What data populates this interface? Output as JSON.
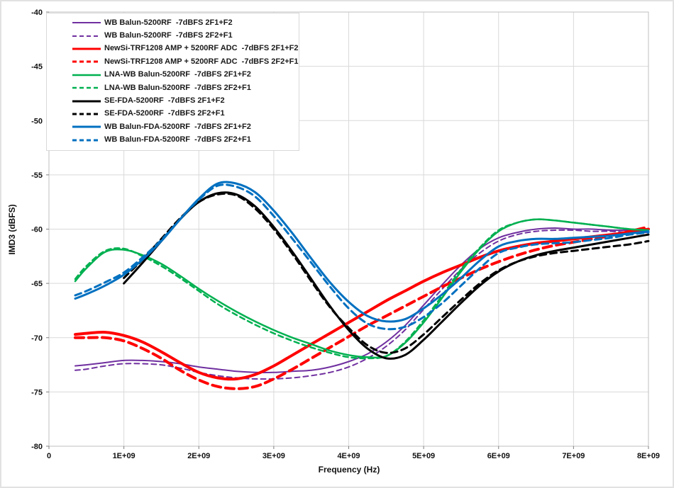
{
  "chart_data": {
    "type": "line",
    "title": "",
    "xlabel": "Frequency (Hz)",
    "ylabel": "IMD3 (dBFS)",
    "xlim_hz": [
      0,
      8000000000.0
    ],
    "ylim": [
      -80,
      -40
    ],
    "x_tick_step_hz": 1000000000.0,
    "y_tick_step": 5,
    "x_tick_labels": [
      "0",
      "1E+09",
      "2E+09",
      "3E+09",
      "4E+09",
      "5E+09",
      "6E+09",
      "7E+09",
      "8E+09"
    ],
    "y_tick_labels": [
      "-40",
      "-45",
      "-50",
      "-55",
      "-60",
      "-65",
      "-70",
      "-75",
      "-80"
    ],
    "grid": true,
    "legend_position": "top-left",
    "colors": {
      "purple": "#7030A0",
      "red": "#FF0000",
      "green": "#00B050",
      "black": "#000000",
      "blue": "#0070C0",
      "gridline": "#d9d9d9",
      "plot_border": "#bfbfbf",
      "tick": "#7f7f7f"
    },
    "series": [
      {
        "name": "WB Balun-5200RF  -7dBFS 2F1+F2",
        "color": "#7030A0",
        "style": "solid",
        "width": 2,
        "x_ghz": [
          0.35,
          0.5,
          0.75,
          1,
          1.25,
          1.5,
          1.75,
          2,
          2.25,
          2.5,
          2.75,
          3,
          3.25,
          3.5,
          3.75,
          4,
          4.25,
          4.5,
          4.75,
          5,
          5.25,
          5.5,
          5.75,
          6,
          6.25,
          6.5,
          6.75,
          7,
          7.25,
          7.5,
          7.75,
          8
        ],
        "y_dbfs": [
          -72.6,
          -72.5,
          -72.3,
          -72.1,
          -72.1,
          -72.2,
          -72.4,
          -72.7,
          -72.9,
          -73.1,
          -73.2,
          -73.2,
          -73.1,
          -73.0,
          -72.7,
          -72.2,
          -71.5,
          -70.4,
          -68.9,
          -67.0,
          -65.1,
          -63.3,
          -61.8,
          -60.8,
          -60.3,
          -60.0,
          -59.9,
          -60.0,
          -60.0,
          -60.1,
          -60.1,
          -60.2
        ]
      },
      {
        "name": "WB Balun-5200RF  -7dBFS 2F2+F1",
        "color": "#7030A0",
        "style": "dashed",
        "width": 2,
        "dash": "7,5",
        "x_ghz": [
          0.35,
          0.5,
          0.75,
          1,
          1.25,
          1.5,
          1.75,
          2,
          2.25,
          2.5,
          2.75,
          3,
          3.25,
          3.5,
          3.75,
          4,
          4.25,
          4.5,
          4.75,
          5,
          5.25,
          5.5,
          5.75,
          6,
          6.25,
          6.5,
          6.75,
          7,
          7.25,
          7.5,
          7.75,
          8
        ],
        "y_dbfs": [
          -73.0,
          -72.9,
          -72.6,
          -72.4,
          -72.4,
          -72.5,
          -72.8,
          -73.2,
          -73.5,
          -73.7,
          -73.8,
          -73.8,
          -73.7,
          -73.5,
          -73.2,
          -72.7,
          -71.9,
          -70.8,
          -69.3,
          -67.4,
          -65.5,
          -63.7,
          -62.2,
          -61.1,
          -60.5,
          -60.2,
          -60.1,
          -60.1,
          -60.2,
          -60.2,
          -60.3,
          -60.3
        ]
      },
      {
        "name": "NewSi-TRF1208 AMP + 5200RF ADC  -7dBFS 2F1+F2",
        "color": "#FF0000",
        "style": "solid",
        "width": 4,
        "x_ghz": [
          0.35,
          0.5,
          0.75,
          1,
          1.25,
          1.5,
          1.75,
          2,
          2.25,
          2.5,
          2.75,
          3,
          3.25,
          3.5,
          3.75,
          4,
          4.25,
          4.5,
          4.75,
          5,
          5.25,
          5.5,
          5.75,
          6,
          6.25,
          6.5,
          6.75,
          7,
          7.25,
          7.5,
          7.75,
          8
        ],
        "y_dbfs": [
          -69.7,
          -69.6,
          -69.5,
          -69.8,
          -70.4,
          -71.3,
          -72.3,
          -73.2,
          -73.7,
          -73.8,
          -73.4,
          -72.6,
          -71.6,
          -70.6,
          -69.6,
          -68.6,
          -67.6,
          -66.6,
          -65.7,
          -64.8,
          -64.0,
          -63.3,
          -62.6,
          -62.0,
          -61.6,
          -61.3,
          -61.1,
          -60.9,
          -60.7,
          -60.5,
          -60.3,
          -60.0
        ]
      },
      {
        "name": "NewSi-TRF1208 AMP + 5200RF ADC  -7dBFS 2F2+F1",
        "color": "#FF0000",
        "style": "dashed",
        "width": 4,
        "dash": "12,7",
        "x_ghz": [
          0.35,
          0.5,
          0.75,
          1,
          1.25,
          1.5,
          1.75,
          2,
          2.25,
          2.5,
          2.75,
          3,
          3.25,
          3.5,
          3.75,
          4,
          4.25,
          4.5,
          4.75,
          5,
          5.25,
          5.5,
          5.75,
          6,
          6.25,
          6.5,
          6.75,
          7,
          7.25,
          7.5,
          7.75,
          8
        ],
        "y_dbfs": [
          -70.0,
          -70.0,
          -70.0,
          -70.3,
          -71.0,
          -71.9,
          -73.0,
          -73.9,
          -74.5,
          -74.7,
          -74.5,
          -73.8,
          -72.9,
          -71.9,
          -70.9,
          -69.9,
          -68.9,
          -68.0,
          -67.1,
          -66.2,
          -65.3,
          -64.5,
          -63.7,
          -63.0,
          -62.4,
          -61.9,
          -61.5,
          -61.2,
          -60.9,
          -60.6,
          -60.2,
          -59.8
        ]
      },
      {
        "name": "LNA-WB Balun-5200RF  -7dBFS 2F1+F2",
        "color": "#00B050",
        "style": "solid",
        "width": 2.5,
        "x_ghz": [
          0.35,
          0.5,
          0.75,
          1,
          1.25,
          1.5,
          1.75,
          2,
          2.25,
          2.5,
          2.75,
          3,
          3.25,
          3.5,
          3.75,
          4,
          4.25,
          4.5,
          4.75,
          5,
          5.25,
          5.5,
          5.75,
          6,
          6.25,
          6.5,
          6.75,
          7,
          7.25,
          7.5,
          7.75,
          8
        ],
        "y_dbfs": [
          -64.8,
          -63.6,
          -62.1,
          -61.9,
          -62.4,
          -63.2,
          -64.3,
          -65.5,
          -66.6,
          -67.6,
          -68.5,
          -69.3,
          -70.0,
          -70.6,
          -71.2,
          -71.6,
          -71.8,
          -71.7,
          -70.5,
          -68.6,
          -66.3,
          -63.9,
          -61.8,
          -60.2,
          -59.4,
          -59.1,
          -59.2,
          -59.4,
          -59.6,
          -59.8,
          -60.0,
          -60.1
        ]
      },
      {
        "name": "LNA-WB Balun-5200RF  -7dBFS 2F2+F1",
        "color": "#00B050",
        "style": "dashed",
        "width": 2.5,
        "dash": "7,5",
        "x_ghz": [
          0.35,
          0.5,
          0.75,
          1,
          1.25,
          1.5,
          1.75,
          2,
          2.25,
          2.5,
          2.75,
          3,
          3.25,
          3.5,
          3.75,
          4,
          4.25,
          4.5,
          4.75,
          5,
          5.25,
          5.5,
          5.75,
          6,
          6.25,
          6.5,
          6.75,
          7,
          7.25,
          7.5,
          7.75,
          8
        ],
        "y_dbfs": [
          -64.6,
          -63.4,
          -62.0,
          -61.8,
          -62.5,
          -63.4,
          -64.5,
          -65.7,
          -66.9,
          -67.9,
          -68.8,
          -69.6,
          -70.3,
          -70.9,
          -71.4,
          -71.8,
          -71.9,
          -71.7,
          -70.4,
          -68.4,
          -66.1,
          -63.7,
          -61.7,
          -60.1,
          -59.4,
          -59.1,
          -59.2,
          -59.4,
          -59.6,
          -59.8,
          -60.0,
          -60.1
        ]
      },
      {
        "name": "SE-FDA-5200RF  -7dBFS 2F1+F2",
        "color": "#000000",
        "style": "solid",
        "width": 3,
        "x_ghz": [
          1,
          1.25,
          1.5,
          1.75,
          2,
          2.25,
          2.5,
          2.75,
          3,
          3.25,
          3.5,
          3.75,
          4,
          4.25,
          4.5,
          4.75,
          5,
          5.25,
          5.5,
          5.75,
          6,
          6.25,
          6.5,
          6.75,
          7,
          7.25,
          7.5,
          7.75,
          8
        ],
        "y_dbfs": [
          -65.0,
          -63.1,
          -61.1,
          -59.1,
          -57.5,
          -56.7,
          -56.8,
          -57.9,
          -59.8,
          -62.1,
          -64.6,
          -67.1,
          -69.3,
          -71.0,
          -71.9,
          -71.6,
          -70.2,
          -68.5,
          -66.8,
          -65.2,
          -63.9,
          -63.0,
          -62.4,
          -62.0,
          -61.7,
          -61.4,
          -61.1,
          -60.8,
          -60.5
        ]
      },
      {
        "name": "SE-FDA-5200RF  -7dBFS 2F2+F1",
        "color": "#000000",
        "style": "dashed",
        "width": 3,
        "dash": "9,6",
        "x_ghz": [
          1,
          1.25,
          1.5,
          1.75,
          2,
          2.25,
          2.5,
          2.75,
          3,
          3.25,
          3.5,
          3.75,
          4,
          4.25,
          4.5,
          4.75,
          5,
          5.25,
          5.5,
          5.75,
          6,
          6.25,
          6.5,
          6.75,
          7,
          7.25,
          7.5,
          7.75,
          8
        ],
        "y_dbfs": [
          -64.5,
          -62.8,
          -60.9,
          -59.0,
          -57.5,
          -56.8,
          -56.9,
          -58.1,
          -60.0,
          -62.3,
          -64.8,
          -67.2,
          -69.1,
          -70.7,
          -71.4,
          -71.0,
          -69.7,
          -68.1,
          -66.5,
          -65.0,
          -63.8,
          -63.0,
          -62.5,
          -62.2,
          -62.0,
          -61.8,
          -61.6,
          -61.4,
          -61.1
        ]
      },
      {
        "name": "WB Balun-FDA-5200RF  -7dBFS 2F1+F2",
        "color": "#0070C0",
        "style": "solid",
        "width": 3,
        "x_ghz": [
          0.35,
          0.5,
          0.75,
          1,
          1.25,
          1.5,
          1.75,
          2,
          2.25,
          2.5,
          2.75,
          3,
          3.25,
          3.5,
          3.75,
          4,
          4.25,
          4.5,
          4.75,
          5,
          5.25,
          5.5,
          5.75,
          6,
          6.25,
          6.5,
          6.75,
          7,
          7.25,
          7.5,
          7.75,
          8
        ],
        "y_dbfs": [
          -66.4,
          -66.0,
          -65.2,
          -64.2,
          -62.8,
          -61.1,
          -59.1,
          -57.2,
          -55.8,
          -55.8,
          -56.6,
          -58.3,
          -60.4,
          -62.7,
          -64.9,
          -66.7,
          -68.0,
          -68.5,
          -68.3,
          -67.3,
          -66.0,
          -64.5,
          -62.9,
          -61.6,
          -61.1,
          -60.9,
          -60.9,
          -60.8,
          -60.7,
          -60.6,
          -60.4,
          -60.2
        ]
      },
      {
        "name": "WB Balun-FDA-5200RF  -7dBFS 2F2+F1",
        "color": "#0070C0",
        "style": "dashed",
        "width": 3,
        "dash": "9,6",
        "x_ghz": [
          0.35,
          0.5,
          0.75,
          1,
          1.25,
          1.5,
          1.75,
          2,
          2.25,
          2.5,
          2.75,
          3,
          3.25,
          3.5,
          3.75,
          4,
          4.25,
          4.5,
          4.75,
          5,
          5.25,
          5.5,
          5.75,
          6,
          6.25,
          6.5,
          6.75,
          7,
          7.25,
          7.5,
          7.75,
          8
        ],
        "y_dbfs": [
          -66.1,
          -65.7,
          -64.9,
          -64.0,
          -62.6,
          -61.0,
          -59.1,
          -57.3,
          -56.0,
          -56.1,
          -57.0,
          -58.8,
          -60.9,
          -63.1,
          -65.3,
          -67.3,
          -68.7,
          -69.2,
          -69.0,
          -68.1,
          -66.8,
          -65.2,
          -63.6,
          -62.2,
          -61.7,
          -61.4,
          -61.3,
          -61.2,
          -61.0,
          -60.8,
          -60.5,
          -60.3
        ]
      }
    ]
  }
}
